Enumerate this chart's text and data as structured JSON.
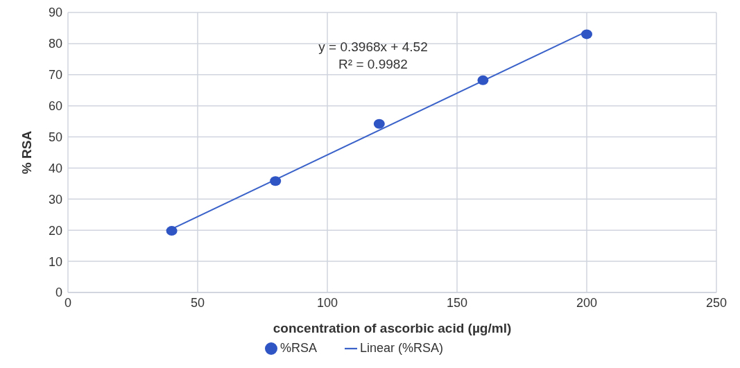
{
  "chart_data": {
    "type": "scatter",
    "xlabel": "concentration of  ascorbic acid (µg/ml)",
    "ylabel": "% RSA",
    "series": [
      {
        "name": "%RSA",
        "marker": "circle",
        "color": "#2f55c4",
        "x": [
          40,
          80,
          120,
          160,
          200
        ],
        "values": [
          19.8,
          35.8,
          54.2,
          68.2,
          83.0
        ]
      },
      {
        "name": "Linear (%RSA)",
        "type": "line",
        "color": "#3a62c9",
        "x": [
          40,
          200
        ],
        "values": [
          20.4,
          83.9
        ]
      }
    ],
    "annotations": [
      "y = 0.3968x + 4.52",
      "R² = 0.9982"
    ],
    "xlim": [
      0,
      250
    ],
    "xticks": [
      0,
      50,
      100,
      150,
      200,
      250
    ],
    "ylim": [
      0,
      90
    ],
    "yticks": [
      0,
      10,
      20,
      30,
      40,
      50,
      60,
      70,
      80,
      90
    ],
    "grid": true,
    "legend": "bottom"
  }
}
